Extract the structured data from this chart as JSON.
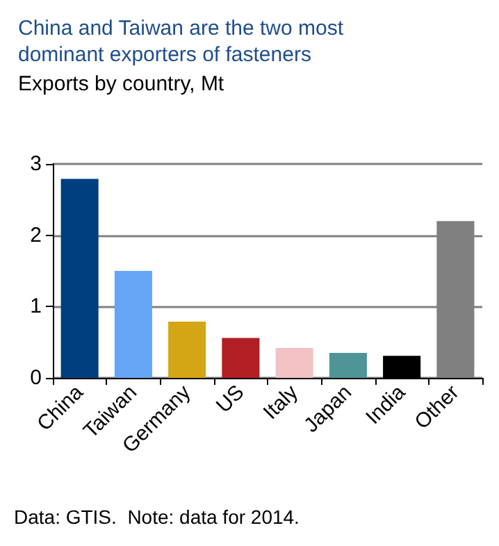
{
  "chart_data": {
    "type": "bar",
    "title": "China and Taiwan are the two most\ndominant exporters of fasteners",
    "subtitle": "Exports by country, Mt",
    "categories": [
      "China",
      "Taiwan",
      "Germany",
      "US",
      "Italy",
      "Japan",
      "India",
      "Other"
    ],
    "values": [
      2.79,
      1.5,
      0.79,
      0.56,
      0.42,
      0.35,
      0.31,
      2.2
    ],
    "colors": [
      "#003f7f",
      "#64a5f5",
      "#d4a514",
      "#b01f24",
      "#f2c2c4",
      "#4f9497",
      "#000000",
      "#808080"
    ],
    "ylim": [
      0,
      3
    ],
    "yticks": [
      0,
      1,
      2,
      3
    ],
    "grid": "y",
    "annotations": [
      "Data: GTIS.  Note: data for 2014."
    ]
  }
}
